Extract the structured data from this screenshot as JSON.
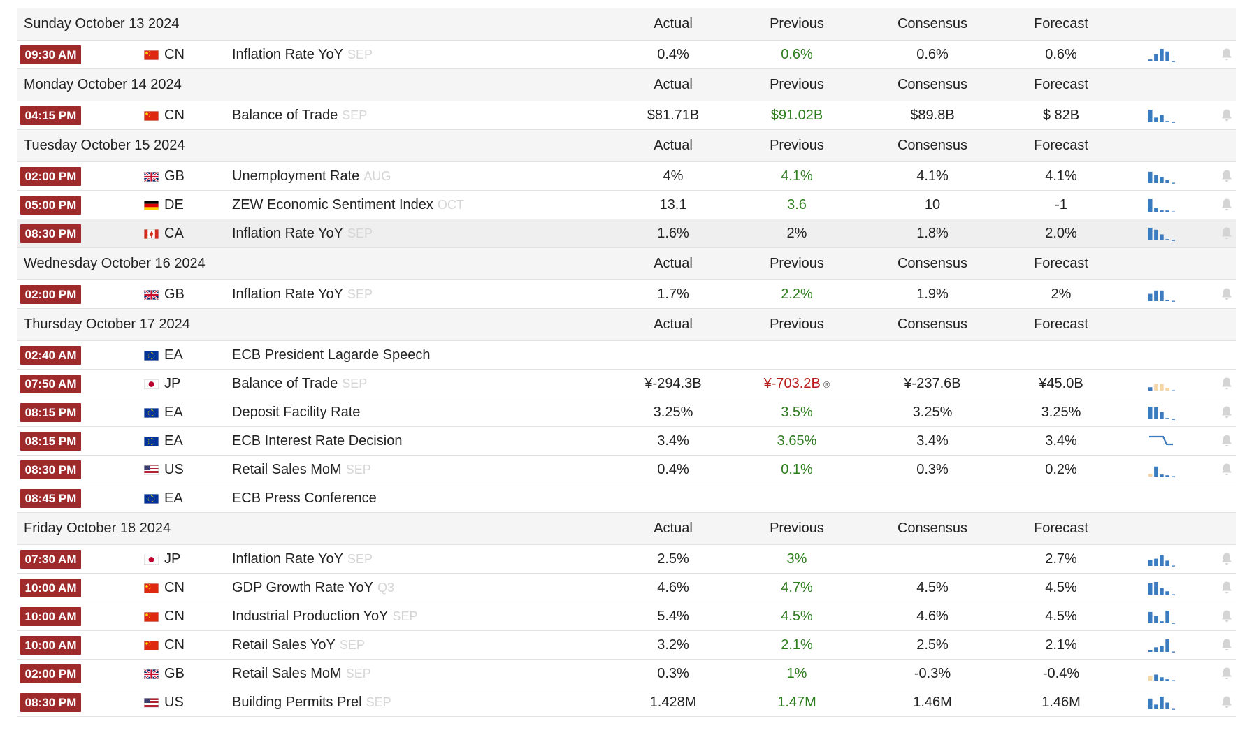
{
  "columns": {
    "actual": "Actual",
    "previous": "Previous",
    "consensus": "Consensus",
    "forecast": "Forecast"
  },
  "days": [
    {
      "date": "Sunday October 13 2024",
      "events": [
        {
          "time": "09:30 AM",
          "flag": "cn",
          "country": "CN",
          "name": "Inflation Rate YoY",
          "ref": "SEP",
          "actual": "0.4%",
          "previous": "0.6%",
          "previous_color": "green",
          "consensus": "0.6%",
          "forecast": "0.6%",
          "chart": [
            0.15,
            0.55,
            0.95,
            0.75
          ],
          "chart_colors": [
            "#3b7bbf",
            "#3b7bbf",
            "#3b7bbf",
            "#3b7bbf"
          ]
        }
      ]
    },
    {
      "date": "Monday October 14 2024",
      "events": [
        {
          "time": "04:15 PM",
          "flag": "cn",
          "country": "CN",
          "name": "Balance of Trade",
          "ref": "SEP",
          "actual": "$81.71B",
          "previous": "$91.02B",
          "previous_color": "green",
          "consensus": "$89.8B",
          "forecast": "$ 82B",
          "chart": [
            0.95,
            0.35,
            0.55,
            0.05
          ],
          "chart_colors": [
            "#3b7bbf",
            "#3b7bbf",
            "#3b7bbf",
            "#3b7bbf"
          ]
        }
      ]
    },
    {
      "date": "Tuesday October 15 2024",
      "events": [
        {
          "time": "02:00 PM",
          "flag": "gb",
          "country": "GB",
          "name": "Unemployment Rate",
          "ref": "AUG",
          "actual": "4%",
          "previous": "4.1%",
          "previous_color": "green",
          "consensus": "4.1%",
          "forecast": "4.1%",
          "chart": [
            0.85,
            0.6,
            0.45,
            0.25
          ],
          "chart_colors": [
            "#3b7bbf",
            "#3b7bbf",
            "#3b7bbf",
            "#3b7bbf"
          ]
        },
        {
          "time": "05:00 PM",
          "flag": "de",
          "country": "DE",
          "name": "ZEW Economic Sentiment Index",
          "ref": "OCT",
          "actual": "13.1",
          "previous": "3.6",
          "previous_color": "green",
          "consensus": "10",
          "forecast": "-1",
          "chart": [
            0.95,
            0.3,
            0.1,
            0.05
          ],
          "chart_colors": [
            "#3b7bbf",
            "#3b7bbf",
            "#3b7bbf",
            "#3b7bbf"
          ]
        },
        {
          "time": "08:30 PM",
          "flag": "ca",
          "country": "CA",
          "name": "Inflation Rate YoY",
          "ref": "SEP",
          "actual": "1.6%",
          "previous": "2%",
          "previous_color": "normal",
          "consensus": "1.8%",
          "forecast": "2.0%",
          "chart": [
            0.95,
            0.8,
            0.45,
            0.05
          ],
          "chart_colors": [
            "#3b7bbf",
            "#3b7bbf",
            "#3b7bbf",
            "#3b7bbf"
          ],
          "highlight": true
        }
      ]
    },
    {
      "date": "Wednesday October 16 2024",
      "events": [
        {
          "time": "02:00 PM",
          "flag": "gb",
          "country": "GB",
          "name": "Inflation Rate YoY",
          "ref": "SEP",
          "actual": "1.7%",
          "previous": "2.2%",
          "previous_color": "green",
          "consensus": "1.9%",
          "forecast": "2%",
          "chart": [
            0.55,
            0.8,
            0.8,
            0.05
          ],
          "chart_colors": [
            "#3b7bbf",
            "#3b7bbf",
            "#3b7bbf",
            "#3b7bbf"
          ]
        }
      ]
    },
    {
      "date": "Thursday October 17 2024",
      "events": [
        {
          "time": "02:40 AM",
          "flag": "eu",
          "country": "EA",
          "name": "ECB President Lagarde Speech",
          "ref": "",
          "actual": "",
          "previous": "",
          "previous_color": "normal",
          "consensus": "",
          "forecast": "",
          "chart": [],
          "chart_colors": [],
          "nobell": true
        },
        {
          "time": "07:50 AM",
          "flag": "jp",
          "country": "JP",
          "name": "Balance of Trade",
          "ref": "SEP",
          "actual": "¥-294.3B",
          "previous": "¥-703.2B",
          "previous_color": "red",
          "revised": true,
          "consensus": "¥-237.6B",
          "forecast": "¥45.0B",
          "chart": [
            0.25,
            0.5,
            0.5,
            0.2
          ],
          "chart_colors": [
            "#3b7bbf",
            "#f4d6a8",
            "#f4d6a8",
            "#f4d6a8"
          ]
        },
        {
          "time": "08:15 PM",
          "flag": "eu",
          "country": "EA",
          "name": "Deposit Facility Rate",
          "ref": "",
          "actual": "3.25%",
          "previous": "3.5%",
          "previous_color": "green",
          "consensus": "3.25%",
          "forecast": "3.25%",
          "chart": [
            0.95,
            0.9,
            0.55,
            0.05
          ],
          "chart_colors": [
            "#3b7bbf",
            "#3b7bbf",
            "#3b7bbf",
            "#3b7bbf"
          ]
        },
        {
          "time": "08:15 PM",
          "flag": "eu",
          "country": "EA",
          "name": "ECB Interest Rate Decision",
          "ref": "",
          "actual": "3.4%",
          "previous": "3.65%",
          "previous_color": "green",
          "consensus": "3.4%",
          "forecast": "3.4%",
          "chart": [],
          "chart_colors": [],
          "step": true
        },
        {
          "time": "08:30 PM",
          "flag": "us",
          "country": "US",
          "name": "Retail Sales MoM",
          "ref": "SEP",
          "actual": "0.4%",
          "previous": "0.1%",
          "previous_color": "green",
          "consensus": "0.3%",
          "forecast": "0.2%",
          "chart": [
            0.2,
            0.75,
            0.15,
            0.05
          ],
          "chart_colors": [
            "#f4d6a8",
            "#3b7bbf",
            "#3b7bbf",
            "#3b7bbf"
          ]
        },
        {
          "time": "08:45 PM",
          "flag": "eu",
          "country": "EA",
          "name": "ECB Press Conference",
          "ref": "",
          "actual": "",
          "previous": "",
          "previous_color": "normal",
          "consensus": "",
          "forecast": "",
          "chart": [],
          "chart_colors": [],
          "nobell": true
        }
      ]
    },
    {
      "date": "Friday October 18 2024",
      "events": [
        {
          "time": "07:30 AM",
          "flag": "jp",
          "country": "JP",
          "name": "Inflation Rate YoY",
          "ref": "SEP",
          "actual": "2.5%",
          "previous": "3%",
          "previous_color": "green",
          "consensus": "",
          "forecast": "2.7%",
          "chart": [
            0.45,
            0.55,
            0.8,
            0.4
          ],
          "chart_colors": [
            "#3b7bbf",
            "#3b7bbf",
            "#3b7bbf",
            "#3b7bbf"
          ]
        },
        {
          "time": "10:00 AM",
          "flag": "cn",
          "country": "CN",
          "name": "GDP Growth Rate YoY",
          "ref": "Q3",
          "actual": "4.6%",
          "previous": "4.7%",
          "previous_color": "green",
          "consensus": "4.5%",
          "forecast": "4.5%",
          "chart": [
            0.85,
            0.95,
            0.5,
            0.25
          ],
          "chart_colors": [
            "#3b7bbf",
            "#3b7bbf",
            "#3b7bbf",
            "#3b7bbf"
          ]
        },
        {
          "time": "10:00 AM",
          "flag": "cn",
          "country": "CN",
          "name": "Industrial Production YoY",
          "ref": "SEP",
          "actual": "5.4%",
          "previous": "4.5%",
          "previous_color": "green",
          "consensus": "4.6%",
          "forecast": "4.5%",
          "chart": [
            0.85,
            0.55,
            0.15,
            0.95
          ],
          "chart_colors": [
            "#3b7bbf",
            "#3b7bbf",
            "#3b7bbf",
            "#3b7bbf"
          ]
        },
        {
          "time": "10:00 AM",
          "flag": "cn",
          "country": "CN",
          "name": "Retail Sales YoY",
          "ref": "SEP",
          "actual": "3.2%",
          "previous": "2.1%",
          "previous_color": "green",
          "consensus": "2.5%",
          "forecast": "2.1%",
          "chart": [
            0.15,
            0.35,
            0.45,
            0.95
          ],
          "chart_colors": [
            "#3b7bbf",
            "#3b7bbf",
            "#3b7bbf",
            "#3b7bbf"
          ]
        },
        {
          "time": "02:00 PM",
          "flag": "gb",
          "country": "GB",
          "name": "Retail Sales MoM",
          "ref": "SEP",
          "actual": "0.3%",
          "previous": "1%",
          "previous_color": "green",
          "consensus": "-0.3%",
          "forecast": "-0.4%",
          "chart": [
            0.35,
            0.45,
            0.25,
            0.05
          ],
          "chart_colors": [
            "#f4d6a8",
            "#3b7bbf",
            "#3b7bbf",
            "#3b7bbf"
          ]
        },
        {
          "time": "08:30 PM",
          "flag": "us",
          "country": "US",
          "name": "Building Permits Prel",
          "ref": "SEP",
          "actual": "1.428M",
          "previous": "1.47M",
          "previous_color": "green",
          "consensus": "1.46M",
          "forecast": "1.46M",
          "chart": [
            0.8,
            0.35,
            0.95,
            0.5
          ],
          "chart_colors": [
            "#3b7bbf",
            "#3b7bbf",
            "#3b7bbf",
            "#3b7bbf"
          ]
        }
      ]
    }
  ]
}
